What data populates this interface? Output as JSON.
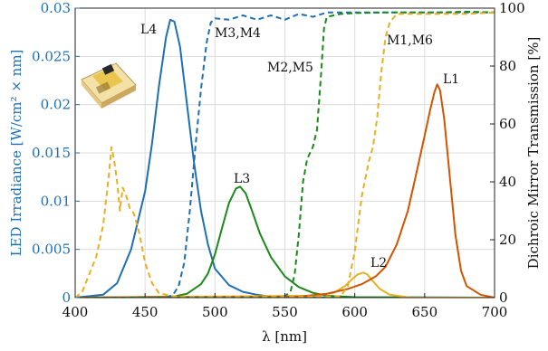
{
  "chart_data": {
    "type": "line",
    "xlabel": "λ [nm]",
    "ylabel_left": "LED Irradiance [W/cm² × nm]",
    "ylabel_right": "Dichroic Mirror Transmission [%]",
    "xlim": [
      400,
      700
    ],
    "ylim_left": [
      0,
      0.03
    ],
    "ylim_right": [
      0,
      100
    ],
    "x_ticks": [
      "400",
      "450",
      "500",
      "550",
      "600",
      "650",
      "700"
    ],
    "y_left_ticks": [
      "0",
      "0.005",
      "0.01",
      "0.015",
      "0.02",
      "0.025",
      "0.03"
    ],
    "y_right_ticks": [
      "0",
      "20",
      "40",
      "60",
      "80",
      "100"
    ],
    "grid": true,
    "colors": {
      "blue": "#1f6fb3",
      "green": "#1a8a1a",
      "orange": "#d35400",
      "yellow": "#e8b020",
      "left_axis": "#1f6fb3"
    },
    "annotations": [
      "L4",
      "M3,M4",
      "M2,M5",
      "M1,M6",
      "L1",
      "L3",
      "L2"
    ],
    "series": [
      {
        "axis": "left",
        "style": "solid",
        "color": "#1f6fb3",
        "points": [
          [
            400,
            0
          ],
          [
            420,
            0.0003
          ],
          [
            430,
            0.0015
          ],
          [
            440,
            0.005
          ],
          [
            450,
            0.011
          ],
          [
            455,
            0.016
          ],
          [
            460,
            0.022
          ],
          [
            465,
            0.027
          ],
          [
            468,
            0.0288
          ],
          [
            471,
            0.0286
          ],
          [
            475,
            0.026
          ],
          [
            480,
            0.02
          ],
          [
            485,
            0.014
          ],
          [
            490,
            0.009
          ],
          [
            495,
            0.0055
          ],
          [
            500,
            0.003
          ],
          [
            510,
            0.0013
          ],
          [
            520,
            0.0006
          ],
          [
            530,
            0.0003
          ],
          [
            540,
            0.0001
          ],
          [
            560,
            3e-05
          ],
          [
            700,
            0
          ]
        ]
      },
      {
        "axis": "left",
        "style": "solid",
        "color": "#1a8a1a",
        "points": [
          [
            400,
            0
          ],
          [
            470,
            0.0001
          ],
          [
            480,
            0.0004
          ],
          [
            490,
            0.0014
          ],
          [
            495,
            0.0025
          ],
          [
            500,
            0.0045
          ],
          [
            505,
            0.0072
          ],
          [
            510,
            0.0098
          ],
          [
            515,
            0.0113
          ],
          [
            518,
            0.0115
          ],
          [
            522,
            0.0108
          ],
          [
            527,
            0.0088
          ],
          [
            532,
            0.0067
          ],
          [
            540,
            0.0042
          ],
          [
            550,
            0.0022
          ],
          [
            560,
            0.0011
          ],
          [
            570,
            0.0005
          ],
          [
            580,
            0.0002
          ],
          [
            600,
            5e-05
          ],
          [
            700,
            0
          ]
        ]
      },
      {
        "axis": "left",
        "style": "solid",
        "color": "#e8b020",
        "points": [
          [
            400,
            0
          ],
          [
            570,
            0.0002
          ],
          [
            585,
            0.0005
          ],
          [
            593,
            0.0012
          ],
          [
            598,
            0.0019
          ],
          [
            602,
            0.0024
          ],
          [
            606,
            0.0026
          ],
          [
            609,
            0.0024
          ],
          [
            613,
            0.0017
          ],
          [
            618,
            0.0009
          ],
          [
            625,
            0.0003
          ],
          [
            640,
            0
          ],
          [
            700,
            0
          ]
        ]
      },
      {
        "axis": "left",
        "style": "solid",
        "color": "#d35400",
        "points": [
          [
            400,
            0
          ],
          [
            560,
            0.0001
          ],
          [
            580,
            0.0004
          ],
          [
            595,
            0.0009
          ],
          [
            605,
            0.0014
          ],
          [
            615,
            0.0022
          ],
          [
            622,
            0.0032
          ],
          [
            630,
            0.0055
          ],
          [
            638,
            0.009
          ],
          [
            645,
            0.0135
          ],
          [
            650,
            0.0168
          ],
          [
            654,
            0.0195
          ],
          [
            657,
            0.0213
          ],
          [
            659,
            0.0221
          ],
          [
            661,
            0.0215
          ],
          [
            664,
            0.0185
          ],
          [
            668,
            0.0125
          ],
          [
            672,
            0.0065
          ],
          [
            676,
            0.0028
          ],
          [
            680,
            0.0012
          ],
          [
            690,
            0.0003
          ],
          [
            700,
            0
          ]
        ]
      },
      {
        "axis": "right",
        "style": "dashed",
        "color": "#1f6fb3",
        "points": [
          [
            465,
            0
          ],
          [
            470,
            1
          ],
          [
            474,
            4
          ],
          [
            478,
            12
          ],
          [
            482,
            30
          ],
          [
            486,
            52
          ],
          [
            490,
            72
          ],
          [
            494,
            88
          ],
          [
            497,
            95
          ],
          [
            500,
            96.5
          ],
          [
            510,
            96
          ],
          [
            520,
            97.5
          ],
          [
            530,
            96
          ],
          [
            540,
            97.5
          ],
          [
            550,
            96
          ],
          [
            560,
            98
          ],
          [
            570,
            97
          ],
          [
            580,
            98.5
          ],
          [
            600,
            98.5
          ],
          [
            620,
            98.5
          ],
          [
            640,
            98.5
          ],
          [
            660,
            98.5
          ],
          [
            700,
            98.5
          ]
        ]
      },
      {
        "axis": "right",
        "style": "dashed",
        "color": "#1a8a1a",
        "points": [
          [
            400,
            0
          ],
          [
            545,
            0
          ],
          [
            550,
            0.5
          ],
          [
            554,
            2
          ],
          [
            557,
            8
          ],
          [
            560,
            22
          ],
          [
            563,
            40
          ],
          [
            566,
            48
          ],
          [
            570,
            52
          ],
          [
            573,
            58
          ],
          [
            576,
            78
          ],
          [
            578,
            93
          ],
          [
            580,
            97
          ],
          [
            590,
            98
          ],
          [
            600,
            98.3
          ],
          [
            620,
            98.5
          ],
          [
            640,
            98.5
          ],
          [
            660,
            98.5
          ],
          [
            680,
            98.8
          ],
          [
            700,
            98.5
          ]
        ]
      },
      {
        "axis": "right",
        "style": "dashed",
        "color": "#e8b020",
        "points": [
          [
            400,
            0
          ],
          [
            405,
            2
          ],
          [
            410,
            8
          ],
          [
            415,
            14
          ],
          [
            420,
            25
          ],
          [
            424,
            42
          ],
          [
            426,
            52
          ],
          [
            428,
            47
          ],
          [
            430,
            40
          ],
          [
            432,
            30
          ],
          [
            434,
            38
          ],
          [
            436,
            36
          ],
          [
            439,
            31
          ],
          [
            442,
            29
          ],
          [
            446,
            22
          ],
          [
            450,
            12
          ],
          [
            455,
            5
          ],
          [
            460,
            1.5
          ],
          [
            470,
            0.5
          ],
          [
            480,
            0.3
          ],
          [
            500,
            0.3
          ],
          [
            550,
            0.3
          ],
          [
            590,
            0.5
          ],
          [
            595,
            4
          ],
          [
            600,
            16
          ],
          [
            605,
            35
          ],
          [
            610,
            47
          ],
          [
            613,
            52
          ],
          [
            616,
            62
          ],
          [
            619,
            78
          ],
          [
            622,
            90
          ],
          [
            625,
            95
          ],
          [
            630,
            98
          ],
          [
            640,
            98
          ],
          [
            660,
            98
          ],
          [
            680,
            98
          ],
          [
            700,
            98.5
          ]
        ]
      }
    ]
  }
}
